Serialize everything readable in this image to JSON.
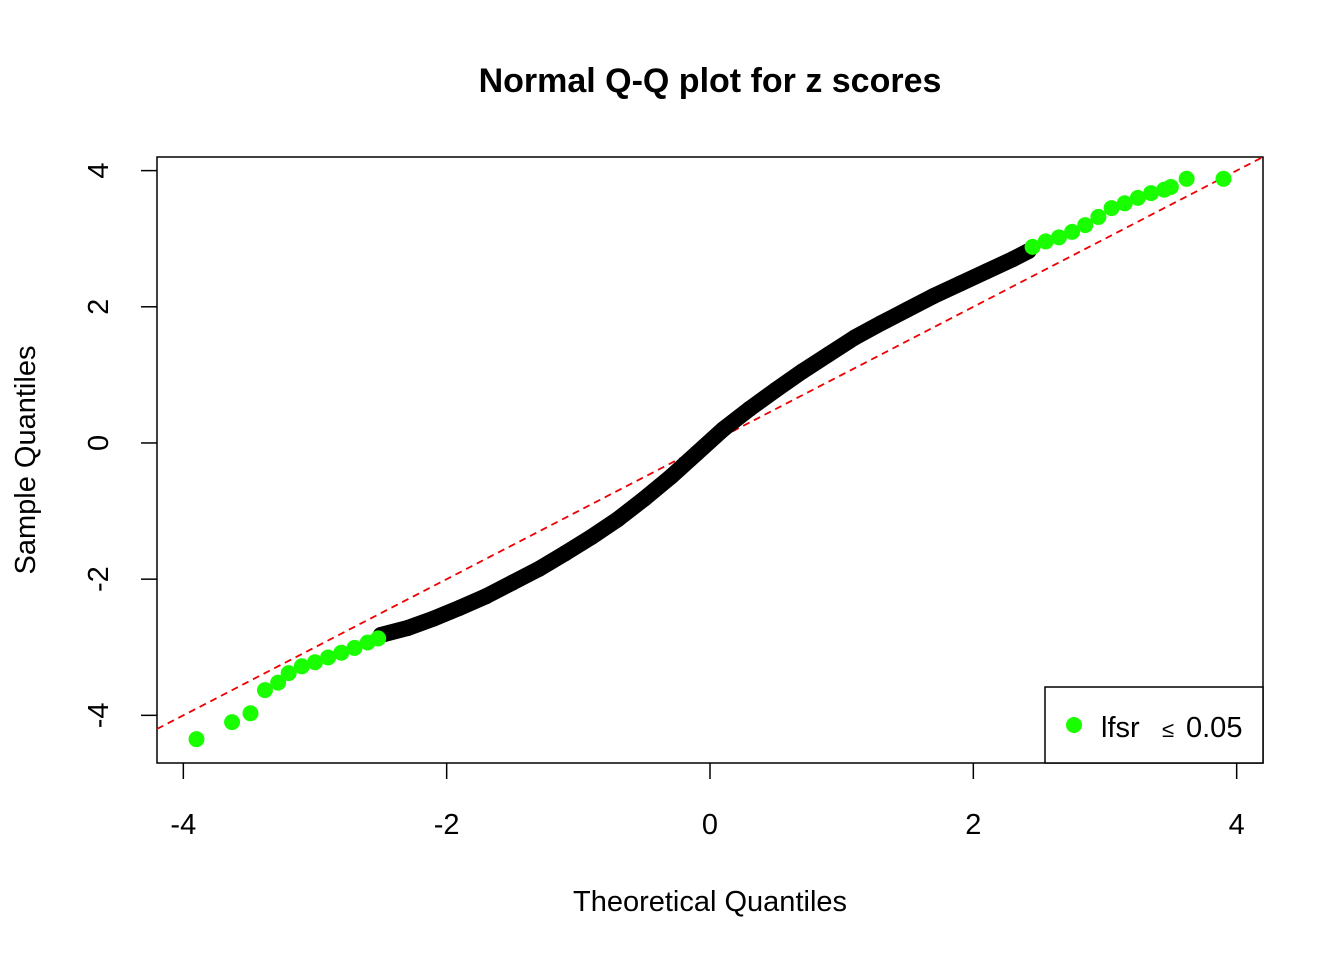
{
  "chart_data": {
    "type": "scatter",
    "title": "Normal Q-Q plot for z scores",
    "xlabel": "Theoretical Quantiles",
    "ylabel": "Sample Quantiles",
    "xlim": [
      -4.2,
      4.2
    ],
    "ylim": [
      -4.7,
      4.2
    ],
    "x_ticks": [
      -4,
      -2,
      0,
      2,
      4
    ],
    "y_ticks": [
      -4,
      -2,
      0,
      2,
      4
    ],
    "grid": false,
    "legend_position": "bottom-right",
    "reference_line": {
      "intercept": 0,
      "slope": 1,
      "color": "#ee0000",
      "style": "dashed"
    },
    "legend": {
      "label": "lfsr",
      "symbol": "≤",
      "value": "0.05",
      "color": "#19ff00"
    },
    "series": [
      {
        "color": "#000000",
        "points": [
          [
            -2.5,
            -2.82
          ],
          [
            -2.3,
            -2.72
          ],
          [
            -2.1,
            -2.58
          ],
          [
            -1.9,
            -2.42
          ],
          [
            -1.7,
            -2.25
          ],
          [
            -1.5,
            -2.05
          ],
          [
            -1.3,
            -1.85
          ],
          [
            -1.1,
            -1.62
          ],
          [
            -0.9,
            -1.38
          ],
          [
            -0.7,
            -1.12
          ],
          [
            -0.5,
            -0.82
          ],
          [
            -0.3,
            -0.5
          ],
          [
            -0.1,
            -0.15
          ],
          [
            0.1,
            0.2
          ],
          [
            0.3,
            0.5
          ],
          [
            0.5,
            0.78
          ],
          [
            0.7,
            1.05
          ],
          [
            0.9,
            1.3
          ],
          [
            1.1,
            1.55
          ],
          [
            1.3,
            1.76
          ],
          [
            1.5,
            1.96
          ],
          [
            1.7,
            2.16
          ],
          [
            1.9,
            2.34
          ],
          [
            2.1,
            2.52
          ],
          [
            2.3,
            2.7
          ],
          [
            2.42,
            2.82
          ]
        ]
      },
      {
        "color": "#19ff00",
        "points": [
          [
            -3.9,
            -4.35
          ],
          [
            -3.63,
            -4.1
          ],
          [
            -3.49,
            -3.97
          ],
          [
            -3.38,
            -3.63
          ],
          [
            -3.28,
            -3.52
          ],
          [
            -3.2,
            -3.38
          ],
          [
            -3.1,
            -3.28
          ],
          [
            -3.0,
            -3.22
          ],
          [
            -2.9,
            -3.15
          ],
          [
            -2.8,
            -3.08
          ],
          [
            -2.7,
            -3.01
          ],
          [
            -2.6,
            -2.93
          ],
          [
            -2.52,
            -2.87
          ],
          [
            2.45,
            2.88
          ],
          [
            2.55,
            2.96
          ],
          [
            2.65,
            3.02
          ],
          [
            2.75,
            3.1
          ],
          [
            2.85,
            3.2
          ],
          [
            2.95,
            3.32
          ],
          [
            3.05,
            3.45
          ],
          [
            3.15,
            3.52
          ],
          [
            3.25,
            3.6
          ],
          [
            3.35,
            3.67
          ],
          [
            3.45,
            3.72
          ],
          [
            3.5,
            3.76
          ],
          [
            3.62,
            3.88
          ],
          [
            3.9,
            3.88
          ]
        ]
      }
    ]
  }
}
